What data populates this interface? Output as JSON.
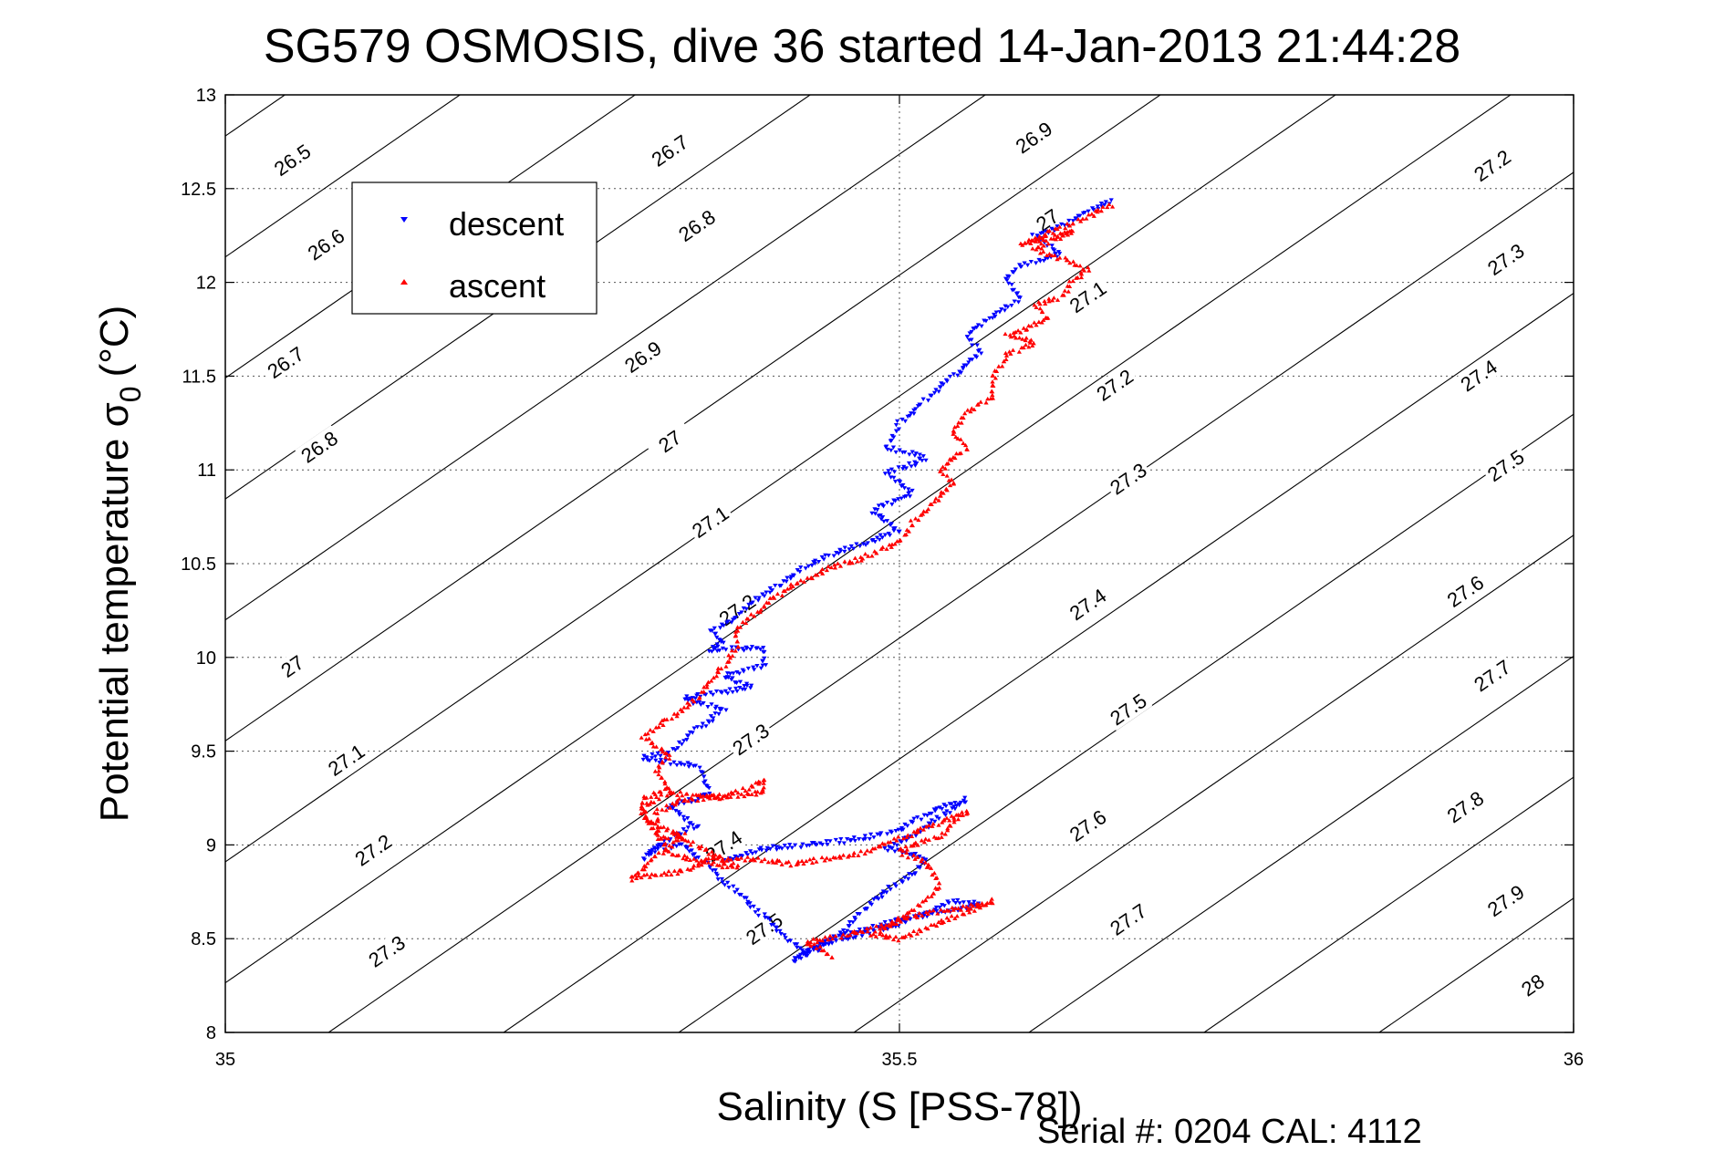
{
  "chart_data": {
    "type": "scatter",
    "title": "SG579 OSMOSIS, dive 36 started 14-Jan-2013 21:44:28",
    "xlabel": "Salinity (S [PSS-78])",
    "ylabel_main": "Potential temperature σ",
    "ylabel_sub": "0",
    "ylabel_unit": "(°C)",
    "xlim": [
      35,
      36
    ],
    "ylim": [
      8,
      13
    ],
    "xticks": [
      35,
      35.5,
      36
    ],
    "xtick_labels": [
      "35",
      "35.5",
      "36"
    ],
    "yticks": [
      8,
      8.5,
      9,
      9.5,
      10,
      10.5,
      11,
      11.5,
      12,
      12.5,
      13
    ],
    "ytick_labels": [
      "8",
      "8.5",
      "9",
      "9.5",
      "10",
      "10.5",
      "11",
      "11.5",
      "12",
      "12.5",
      "13"
    ],
    "grid": true,
    "legend_position": "top-left",
    "density_contours": {
      "color": "#000000",
      "levels": [
        26.5,
        26.6,
        26.7,
        26.8,
        26.9,
        27.0,
        27.1,
        27.2,
        27.3,
        27.4,
        27.5,
        27.6,
        27.7,
        27.8,
        27.9,
        28.0
      ],
      "labels": [
        {
          "text": "26.5",
          "s": 35.05,
          "t": 12.65
        },
        {
          "text": "26.6",
          "s": 35.075,
          "t": 12.2
        },
        {
          "text": "26.7",
          "s": 35.045,
          "t": 11.57
        },
        {
          "text": "26.8",
          "s": 35.07,
          "t": 11.12
        },
        {
          "text": "27",
          "s": 35.05,
          "t": 9.95
        },
        {
          "text": "27.1",
          "s": 35.09,
          "t": 9.45
        },
        {
          "text": "27.2",
          "s": 35.11,
          "t": 8.97
        },
        {
          "text": "27.3",
          "s": 35.12,
          "t": 8.43
        },
        {
          "text": "26.7",
          "s": 35.33,
          "t": 12.7
        },
        {
          "text": "26.8",
          "s": 35.35,
          "t": 12.3
        },
        {
          "text": "26.9",
          "s": 35.31,
          "t": 11.6
        },
        {
          "text": "27",
          "s": 35.33,
          "t": 11.15
        },
        {
          "text": "27.1",
          "s": 35.36,
          "t": 10.72
        },
        {
          "text": "27.2",
          "s": 35.38,
          "t": 10.25
        },
        {
          "text": "27.3",
          "s": 35.39,
          "t": 9.56
        },
        {
          "text": "27.4",
          "s": 35.37,
          "t": 8.99
        },
        {
          "text": "27.5",
          "s": 35.4,
          "t": 8.55
        },
        {
          "text": "26.9",
          "s": 35.6,
          "t": 12.77
        },
        {
          "text": "27",
          "s": 35.61,
          "t": 12.33
        },
        {
          "text": "27.1",
          "s": 35.64,
          "t": 11.92
        },
        {
          "text": "27.2",
          "s": 35.66,
          "t": 11.45
        },
        {
          "text": "27.3",
          "s": 35.67,
          "t": 10.95
        },
        {
          "text": "27.4",
          "s": 35.64,
          "t": 10.28
        },
        {
          "text": "27.5",
          "s": 35.67,
          "t": 9.72
        },
        {
          "text": "27.6",
          "s": 35.64,
          "t": 9.1
        },
        {
          "text": "27.7",
          "s": 35.67,
          "t": 8.6
        },
        {
          "text": "27.2",
          "s": 35.94,
          "t": 12.62
        },
        {
          "text": "27.3",
          "s": 35.95,
          "t": 12.12
        },
        {
          "text": "27.4",
          "s": 35.93,
          "t": 11.5
        },
        {
          "text": "27.5",
          "s": 35.95,
          "t": 11.02
        },
        {
          "text": "27.6",
          "s": 35.92,
          "t": 10.35
        },
        {
          "text": "27.7",
          "s": 35.94,
          "t": 9.9
        },
        {
          "text": "27.8",
          "s": 35.92,
          "t": 9.2
        },
        {
          "text": "27.9",
          "s": 35.95,
          "t": 8.7
        },
        {
          "text": "28",
          "s": 35.97,
          "t": 8.25
        }
      ]
    },
    "series": [
      {
        "name": "descent",
        "color": "#0000ff",
        "marker": "triangle-down",
        "points": [
          [
            35.37,
            8.92
          ],
          [
            35.385,
            8.95
          ],
          [
            35.4,
            8.98
          ],
          [
            35.43,
            9.0
          ],
          [
            35.47,
            9.03
          ],
          [
            35.5,
            9.08
          ],
          [
            35.53,
            9.2
          ],
          [
            35.55,
            9.24
          ],
          [
            35.53,
            9.15
          ],
          [
            35.51,
            9.05
          ],
          [
            35.49,
            8.98
          ],
          [
            35.52,
            8.93
          ],
          [
            35.51,
            8.85
          ],
          [
            35.48,
            8.7
          ],
          [
            35.46,
            8.55
          ],
          [
            35.44,
            8.45
          ],
          [
            35.42,
            8.38
          ],
          [
            35.44,
            8.46
          ],
          [
            35.5,
            8.58
          ],
          [
            35.54,
            8.7
          ],
          [
            35.56,
            8.68
          ],
          [
            35.5,
            8.6
          ],
          [
            35.45,
            8.5
          ],
          [
            35.43,
            8.42
          ],
          [
            35.34,
            9.0
          ],
          [
            35.32,
            8.98
          ],
          [
            35.31,
            8.93
          ],
          [
            35.33,
            9.04
          ],
          [
            35.35,
            9.1
          ],
          [
            35.33,
            9.2
          ],
          [
            35.36,
            9.28
          ],
          [
            35.35,
            9.42
          ],
          [
            35.31,
            9.46
          ],
          [
            35.33,
            9.5
          ],
          [
            35.35,
            9.62
          ],
          [
            35.37,
            9.72
          ],
          [
            35.34,
            9.78
          ],
          [
            35.39,
            9.84
          ],
          [
            35.37,
            9.9
          ],
          [
            35.4,
            9.96
          ],
          [
            35.4,
            10.05
          ],
          [
            35.36,
            10.04
          ],
          [
            35.37,
            10.08
          ],
          [
            35.36,
            10.14
          ],
          [
            35.38,
            10.22
          ],
          [
            35.39,
            10.3
          ],
          [
            35.41,
            10.38
          ],
          [
            35.43,
            10.48
          ],
          [
            35.45,
            10.55
          ],
          [
            35.48,
            10.62
          ],
          [
            35.5,
            10.68
          ],
          [
            35.48,
            10.78
          ],
          [
            35.51,
            10.88
          ],
          [
            35.49,
            10.98
          ],
          [
            35.52,
            11.06
          ],
          [
            35.49,
            11.12
          ],
          [
            35.5,
            11.25
          ],
          [
            35.52,
            11.38
          ],
          [
            35.54,
            11.5
          ],
          [
            35.56,
            11.62
          ],
          [
            35.55,
            11.72
          ],
          [
            35.57,
            11.82
          ],
          [
            35.59,
            11.92
          ],
          [
            35.58,
            12.02
          ],
          [
            35.59,
            12.09
          ],
          [
            35.62,
            12.15
          ],
          [
            35.61,
            12.2
          ],
          [
            35.6,
            12.25
          ],
          [
            35.62,
            12.3
          ],
          [
            35.64,
            12.38
          ],
          [
            35.66,
            12.44
          ]
        ]
      },
      {
        "name": "ascent",
        "color": "#ff0000",
        "marker": "triangle-up",
        "points": [
          [
            35.45,
            8.4
          ],
          [
            35.44,
            8.45
          ],
          [
            35.43,
            8.48
          ],
          [
            35.46,
            8.52
          ],
          [
            35.49,
            8.57
          ],
          [
            35.51,
            8.62
          ],
          [
            35.55,
            8.67
          ],
          [
            35.57,
            8.7
          ],
          [
            35.5,
            8.5
          ],
          [
            35.48,
            8.52
          ],
          [
            35.51,
            8.65
          ],
          [
            35.53,
            8.78
          ],
          [
            35.52,
            8.9
          ],
          [
            35.5,
            8.97
          ],
          [
            35.53,
            9.05
          ],
          [
            35.55,
            9.18
          ],
          [
            35.53,
            9.12
          ],
          [
            35.47,
            8.95
          ],
          [
            35.42,
            8.9
          ],
          [
            35.4,
            8.92
          ],
          [
            35.36,
            8.93
          ],
          [
            35.34,
            8.86
          ],
          [
            35.32,
            8.84
          ],
          [
            35.3,
            8.82
          ],
          [
            35.33,
            9.0
          ],
          [
            35.34,
            9.05
          ],
          [
            35.32,
            9.04
          ],
          [
            35.31,
            9.2
          ],
          [
            35.33,
            9.28
          ],
          [
            35.37,
            9.25
          ],
          [
            35.4,
            9.35
          ],
          [
            35.4,
            9.28
          ],
          [
            35.34,
            9.24
          ],
          [
            35.32,
            9.18
          ],
          [
            35.32,
            9.05
          ],
          [
            35.33,
            8.95
          ],
          [
            35.36,
            8.9
          ],
          [
            35.38,
            8.88
          ],
          [
            35.31,
            9.15
          ],
          [
            35.31,
            9.25
          ],
          [
            35.33,
            9.3
          ],
          [
            35.32,
            9.4
          ],
          [
            35.33,
            9.48
          ],
          [
            35.32,
            9.52
          ],
          [
            35.31,
            9.58
          ],
          [
            35.33,
            9.68
          ],
          [
            35.35,
            9.78
          ],
          [
            35.36,
            9.88
          ],
          [
            35.37,
            9.96
          ],
          [
            35.38,
            10.05
          ],
          [
            35.38,
            10.15
          ],
          [
            35.4,
            10.28
          ],
          [
            35.42,
            10.38
          ],
          [
            35.45,
            10.48
          ],
          [
            35.48,
            10.55
          ],
          [
            35.5,
            10.62
          ],
          [
            35.51,
            10.72
          ],
          [
            35.52,
            10.8
          ],
          [
            35.54,
            10.92
          ],
          [
            35.53,
            11.0
          ],
          [
            35.55,
            11.12
          ],
          [
            35.54,
            11.2
          ],
          [
            35.55,
            11.3
          ],
          [
            35.57,
            11.4
          ],
          [
            35.57,
            11.5
          ],
          [
            35.58,
            11.62
          ],
          [
            35.6,
            11.68
          ],
          [
            35.58,
            11.72
          ],
          [
            35.61,
            11.8
          ],
          [
            35.6,
            11.88
          ],
          [
            35.62,
            11.92
          ],
          [
            35.63,
            12.02
          ],
          [
            35.64,
            12.07
          ],
          [
            35.62,
            12.13
          ],
          [
            35.6,
            12.18
          ],
          [
            35.63,
            12.28
          ],
          [
            35.61,
            12.24
          ],
          [
            35.59,
            12.2
          ],
          [
            35.63,
            12.32
          ],
          [
            35.66,
            12.42
          ]
        ]
      }
    ]
  },
  "footer": {
    "serial_text": "Serial #: 0204  CAL: 4112"
  }
}
